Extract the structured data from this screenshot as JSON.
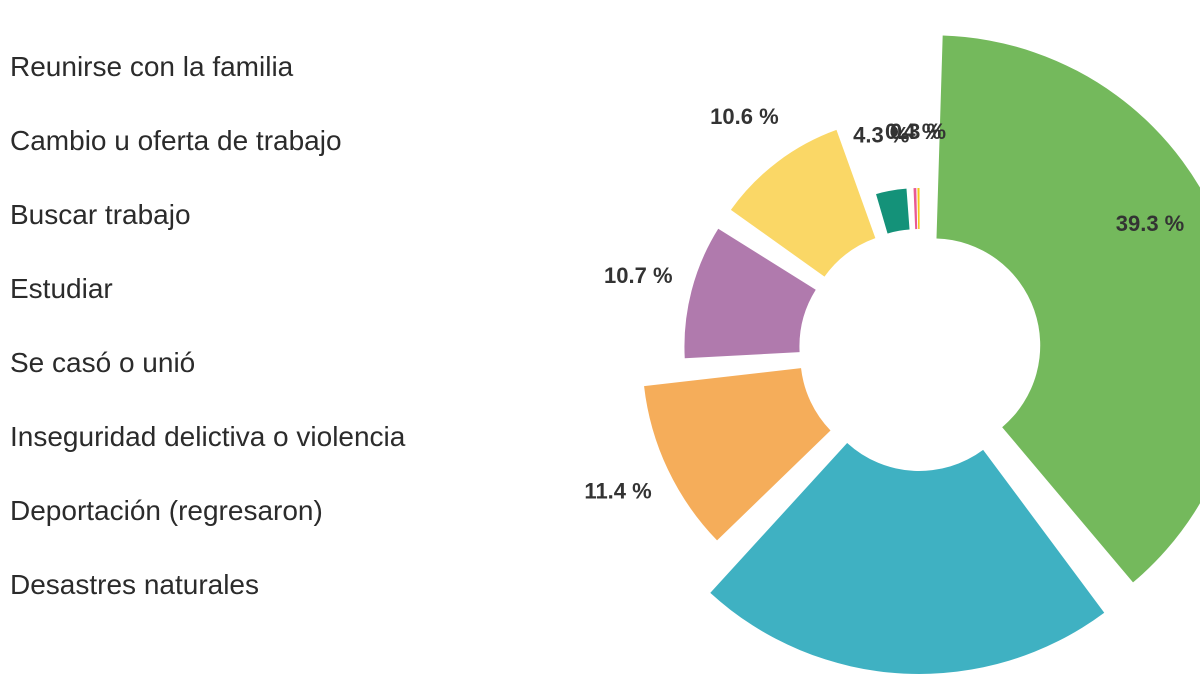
{
  "chart_data": {
    "type": "pie",
    "title": "",
    "legend_position": "left",
    "categories": [
      "Reunirse con la familia",
      "Cambio u oferta de trabajo",
      "Buscar trabajo",
      "Estudiar",
      "Se casó o unió",
      "Inseguridad delictiva o violencia",
      "Deportación (regresaron)",
      "Desastres naturales"
    ],
    "values": [
      39.3,
      22.9,
      11.4,
      10.7,
      10.6,
      4.3,
      0.4,
      0.3
    ],
    "labels": [
      "39.3 %",
      "",
      "11.4 %",
      "10.7 %",
      "10.6 %",
      "4.3 %",
      "0.4 %",
      "0.3 %"
    ],
    "colors": [
      "#74b95c",
      "#3fb1c2",
      "#f5ad5a",
      "#b07aad",
      "#fad766",
      "#149279",
      "#e95a93",
      "#f7c81a"
    ]
  }
}
